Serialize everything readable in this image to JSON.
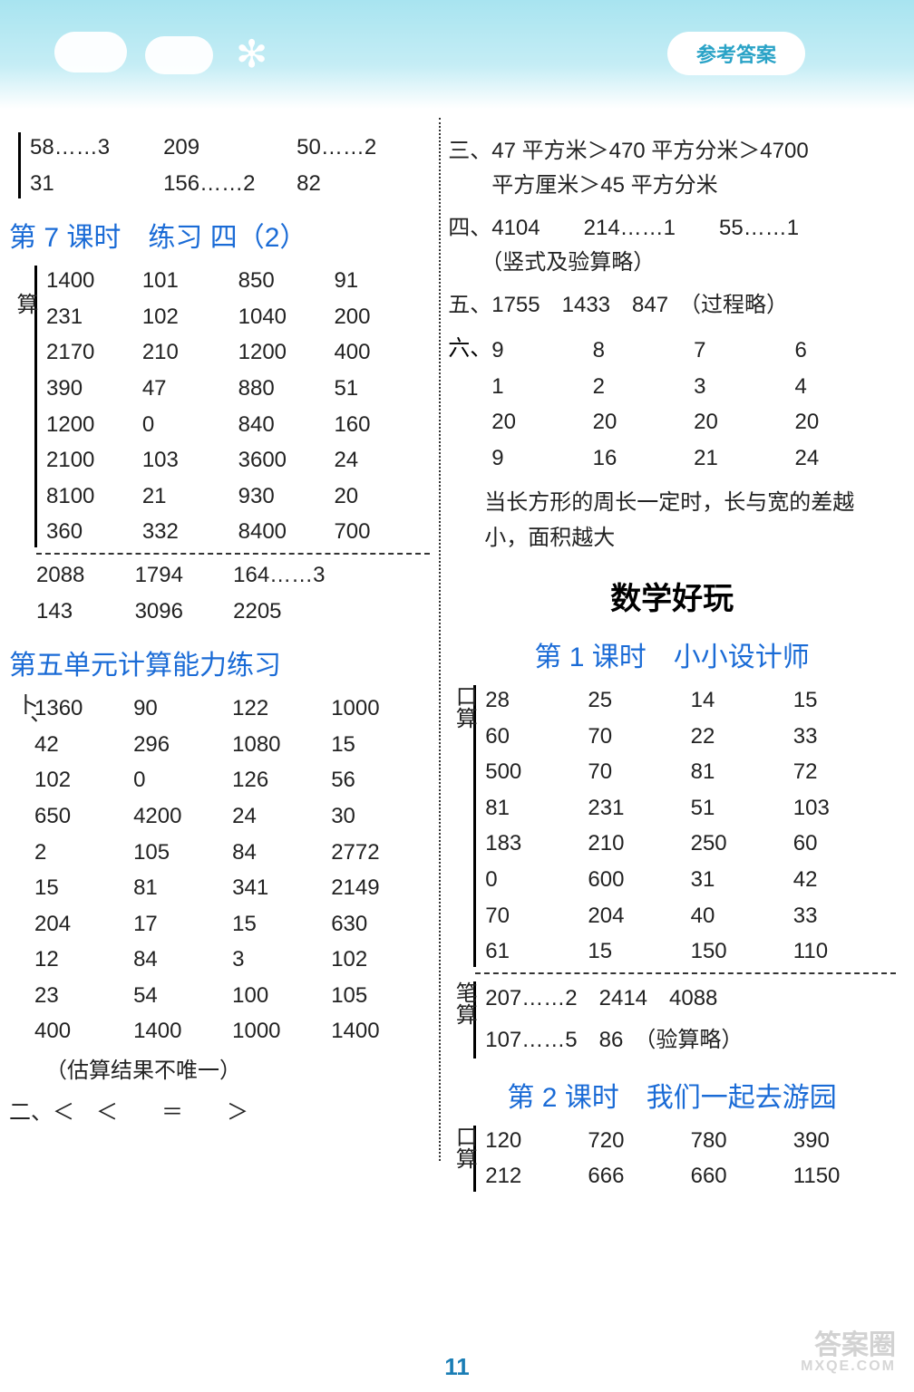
{
  "header": {
    "badge": "参考答案"
  },
  "left": {
    "top_rows": [
      [
        "58……3",
        "209",
        "50……2"
      ],
      [
        "31",
        "156……2",
        "82"
      ]
    ],
    "title1": "第 7 课时　练习 四（2）",
    "side1": "算",
    "grid1": [
      [
        "1400",
        "101",
        "850",
        "91"
      ],
      [
        "231",
        "102",
        "1040",
        "200"
      ],
      [
        "2170",
        "210",
        "1200",
        "400"
      ],
      [
        "390",
        "47",
        "880",
        "51"
      ],
      [
        "1200",
        "0",
        "840",
        "160"
      ],
      [
        "2100",
        "103",
        "3600",
        "24"
      ],
      [
        "8100",
        "21",
        "930",
        "20"
      ],
      [
        "360",
        "332",
        "8400",
        "700"
      ]
    ],
    "grid1b": [
      [
        "2088",
        "1794",
        "164……3",
        ""
      ],
      [
        "143",
        "3096",
        "2205",
        ""
      ]
    ],
    "title2": "第五单元计算能力练习",
    "side2": "卜、",
    "grid2": [
      [
        "1360",
        "90",
        "122",
        "1000"
      ],
      [
        "42",
        "296",
        "1080",
        "15"
      ],
      [
        "102",
        "0",
        "126",
        "56"
      ],
      [
        "650",
        "4200",
        "24",
        "30"
      ],
      [
        "2",
        "105",
        "84",
        "2772"
      ],
      [
        "15",
        "81",
        "341",
        "2149"
      ],
      [
        "204",
        "17",
        "15",
        "630"
      ],
      [
        "12",
        "84",
        "3",
        "102"
      ],
      [
        "23",
        "54",
        "100",
        "105"
      ],
      [
        "400",
        "1400",
        "1000",
        "1400"
      ]
    ],
    "note2": "（估算结果不唯一）",
    "line_two": "二、＜　＜　　＝　　＞"
  },
  "right": {
    "line_three": "三、47 平方米＞470 平方分米＞4700\n　　平方厘米＞45 平方分米",
    "line_four": "四、4104　　214……1　　55……1\n　　（竖式及验算略）",
    "line_five": "五、1755　1433　847　（过程略）",
    "six_label": "六、",
    "six_grid": [
      [
        "9",
        "8",
        "7",
        "6"
      ],
      [
        "1",
        "2",
        "3",
        "4"
      ],
      [
        "20",
        "20",
        "20",
        "20"
      ],
      [
        "9",
        "16",
        "21",
        "24"
      ]
    ],
    "six_note": "当长方形的周长一定时，长与宽的差越小，面积越大",
    "big_title": "数学好玩",
    "title1": "第 1 课时　小小设计师",
    "side_kou": "口算",
    "grid1": [
      [
        "28",
        "25",
        "14",
        "15"
      ],
      [
        "60",
        "70",
        "22",
        "33"
      ],
      [
        "500",
        "70",
        "81",
        "72"
      ],
      [
        "81",
        "231",
        "51",
        "103"
      ],
      [
        "183",
        "210",
        "250",
        "60"
      ],
      [
        "0",
        "600",
        "31",
        "42"
      ],
      [
        "70",
        "204",
        "40",
        "33"
      ],
      [
        "61",
        "15",
        "150",
        "110"
      ]
    ],
    "side_bi": "笔算",
    "grid1b": [
      "207……2　2414　4088",
      "107……5　86　（验算略）"
    ],
    "title2": "第 2 课时　我们一起去游园",
    "side_kou2": "口算",
    "grid2": [
      [
        "120",
        "720",
        "780",
        "390"
      ],
      [
        "212",
        "666",
        "660",
        "1150"
      ]
    ]
  },
  "page_num": "11",
  "watermark": {
    "main": "答案圈",
    "sub": "MXQE.COM"
  }
}
